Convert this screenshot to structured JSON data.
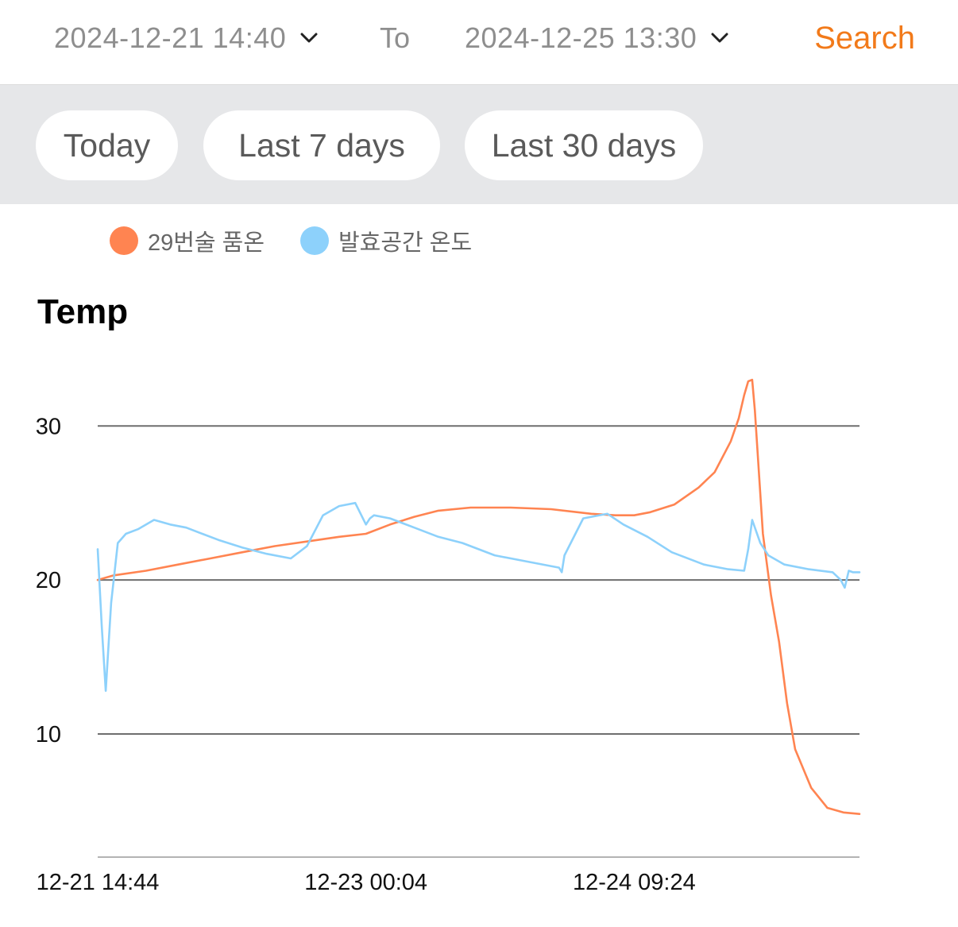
{
  "filter": {
    "start": "2024-12-21 14:40",
    "to_label": "To",
    "end": "2024-12-25 13:30",
    "search_label": "Search"
  },
  "ranges": [
    "Today",
    "Last 7 days",
    "Last 30 days"
  ],
  "colors": {
    "accent": "#f27a1a",
    "series_orange": "#ff8451",
    "series_blue": "#8dd1fb",
    "range_bar_bg": "#e6e7e9"
  },
  "icons": {
    "dropdown": "chevron-down-icon"
  },
  "chart_data": {
    "type": "line",
    "title": "Temp",
    "xlabel": "",
    "ylabel": "",
    "x_tick_labels": [
      "12-21 14:44",
      "12-23 00:04",
      "12-24 09:24"
    ],
    "y_ticks": [
      10,
      20,
      30
    ],
    "ylim": [
      2.0,
      36.0
    ],
    "grid": true,
    "legend": "top-left",
    "series": [
      {
        "name": "29번술 품온",
        "color": "#ff8451",
        "x": [
          "2024-12-21 14:44",
          "2024-12-21 16:44",
          "2024-12-21 20:44",
          "2024-12-22 00:44",
          "2024-12-22 04:44",
          "2024-12-22 08:44",
          "2024-12-22 12:44",
          "2024-12-22 16:44",
          "2024-12-22 20:44",
          "2024-12-23 00:04",
          "2024-12-23 03:04",
          "2024-12-23 06:04",
          "2024-12-23 09:04",
          "2024-12-23 13:04",
          "2024-12-23 18:04",
          "2024-12-23 23:04",
          "2024-12-24 04:04",
          "2024-12-24 07:04",
          "2024-12-24 09:24",
          "2024-12-24 11:24",
          "2024-12-24 14:24",
          "2024-12-24 17:24",
          "2024-12-24 19:24",
          "2024-12-24 21:24",
          "2024-12-24 22:24",
          "2024-12-24 23:04",
          "2024-12-24 23:34",
          "2024-12-25 00:04",
          "2024-12-25 00:24",
          "2024-12-25 01:24",
          "2024-12-25 02:24",
          "2024-12-25 03:24",
          "2024-12-25 04:24",
          "2024-12-25 05:24",
          "2024-12-25 07:24",
          "2024-12-25 09:24",
          "2024-12-25 11:24",
          "2024-12-25 13:24"
        ],
        "y": [
          20.0,
          20.3,
          20.6,
          21.0,
          21.4,
          21.8,
          22.2,
          22.5,
          22.8,
          23.0,
          23.6,
          24.1,
          24.5,
          24.7,
          24.7,
          24.6,
          24.3,
          24.2,
          24.2,
          24.4,
          24.9,
          26.0,
          27.0,
          29.0,
          30.5,
          32.0,
          32.9,
          33.0,
          31.0,
          23.0,
          19.0,
          16.0,
          12.0,
          9.0,
          6.5,
          5.2,
          4.9,
          4.8
        ]
      },
      {
        "name": "발효공간 온도",
        "color": "#8dd1fb",
        "x": [
          "2024-12-21 14:44",
          "2024-12-21 15:14",
          "2024-12-21 15:44",
          "2024-12-21 16:24",
          "2024-12-21 17:14",
          "2024-12-21 18:14",
          "2024-12-21 19:44",
          "2024-12-21 21:44",
          "2024-12-21 23:44",
          "2024-12-22 01:44",
          "2024-12-22 03:44",
          "2024-12-22 05:44",
          "2024-12-22 08:44",
          "2024-12-22 11:44",
          "2024-12-22 14:44",
          "2024-12-22 16:44",
          "2024-12-22 18:44",
          "2024-12-22 20:44",
          "2024-12-22 22:44",
          "2024-12-23 00:04",
          "2024-12-23 00:34",
          "2024-12-23 01:04",
          "2024-12-23 03:04",
          "2024-12-23 06:04",
          "2024-12-23 09:04",
          "2024-12-23 12:04",
          "2024-12-23 16:04",
          "2024-12-23 20:04",
          "2024-12-24 00:04",
          "2024-12-24 00:24",
          "2024-12-24 00:44",
          "2024-12-24 03:04",
          "2024-12-24 06:04",
          "2024-12-24 08:04",
          "2024-12-24 11:04",
          "2024-12-24 14:04",
          "2024-12-24 18:04",
          "2024-12-24 21:04",
          "2024-12-24 23:04",
          "2024-12-24 23:34",
          "2024-12-25 00:04",
          "2024-12-25 00:24",
          "2024-12-25 01:04",
          "2024-12-25 02:04",
          "2024-12-25 04:04",
          "2024-12-25 07:04",
          "2024-12-25 10:04",
          "2024-12-25 11:04",
          "2024-12-25 11:34",
          "2024-12-25 12:04",
          "2024-12-25 12:34",
          "2024-12-25 13:24"
        ],
        "y": [
          22.0,
          17.0,
          12.8,
          18.5,
          22.4,
          23.0,
          23.3,
          23.9,
          23.6,
          23.4,
          23.0,
          22.6,
          22.1,
          21.7,
          21.4,
          22.2,
          24.2,
          24.8,
          25.0,
          23.6,
          24.0,
          24.2,
          24.0,
          23.4,
          22.8,
          22.4,
          21.6,
          21.2,
          20.8,
          20.5,
          21.6,
          24.0,
          24.3,
          23.6,
          22.8,
          21.8,
          21.0,
          20.7,
          20.6,
          22.0,
          23.9,
          23.4,
          22.4,
          21.6,
          21.0,
          20.7,
          20.5,
          20.0,
          19.5,
          20.6,
          20.5,
          20.5
        ]
      }
    ]
  }
}
